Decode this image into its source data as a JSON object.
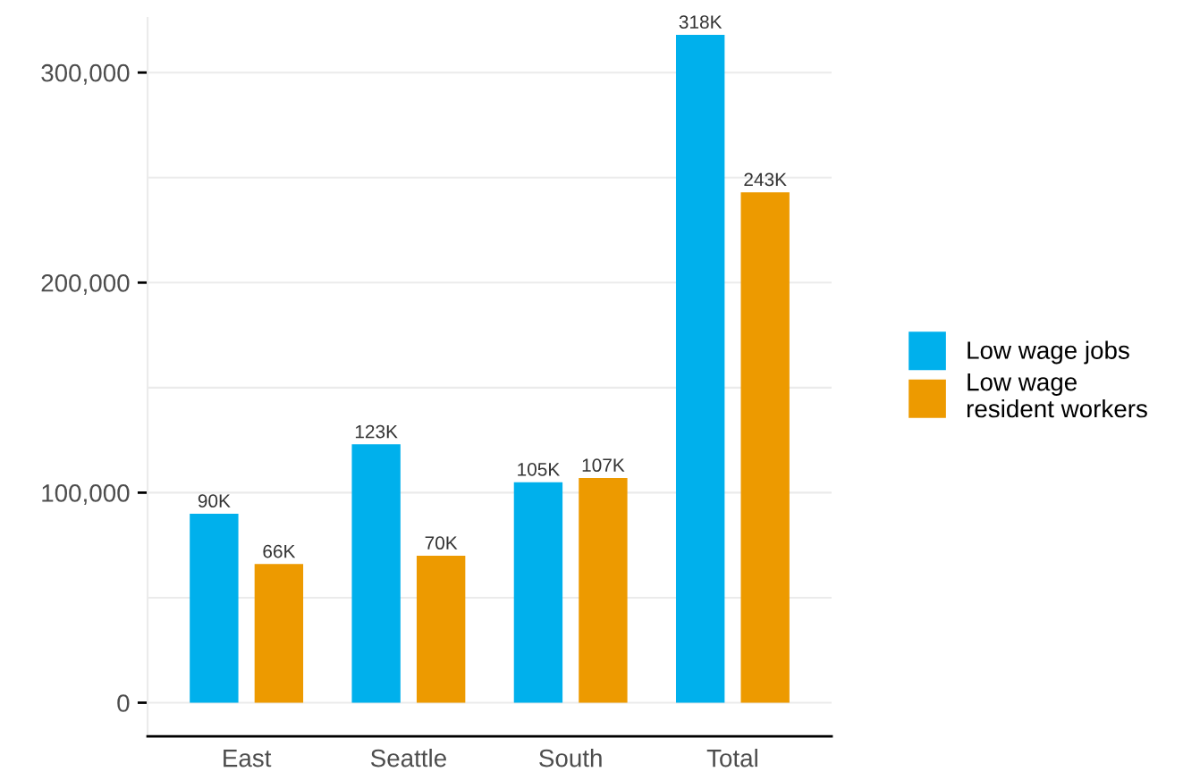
{
  "chart_data": {
    "type": "bar",
    "categories": [
      "East",
      "Seattle",
      "South",
      "Total"
    ],
    "series": [
      {
        "name": "Low wage jobs",
        "color": "#00b0ec",
        "values": [
          90000,
          123000,
          105000,
          318000
        ],
        "value_labels": [
          "90K",
          "123K",
          "105K",
          "318K"
        ]
      },
      {
        "name": "Low wage\nresident workers",
        "color": "#ed9a00",
        "values": [
          66000,
          70000,
          107000,
          243000
        ],
        "value_labels": [
          "66K",
          "70K",
          "107K",
          "243K"
        ]
      }
    ],
    "yticks": [
      {
        "value": 0,
        "label": "0"
      },
      {
        "value": 50000,
        "label": null
      },
      {
        "value": 100000,
        "label": "100,000"
      },
      {
        "value": 150000,
        "label": null
      },
      {
        "value": 200000,
        "label": "200,000"
      },
      {
        "value": 250000,
        "label": null
      },
      {
        "value": 300000,
        "label": "300,000"
      }
    ],
    "ylim": [
      -16000,
      326000
    ],
    "grid": "y",
    "legend": "right"
  }
}
